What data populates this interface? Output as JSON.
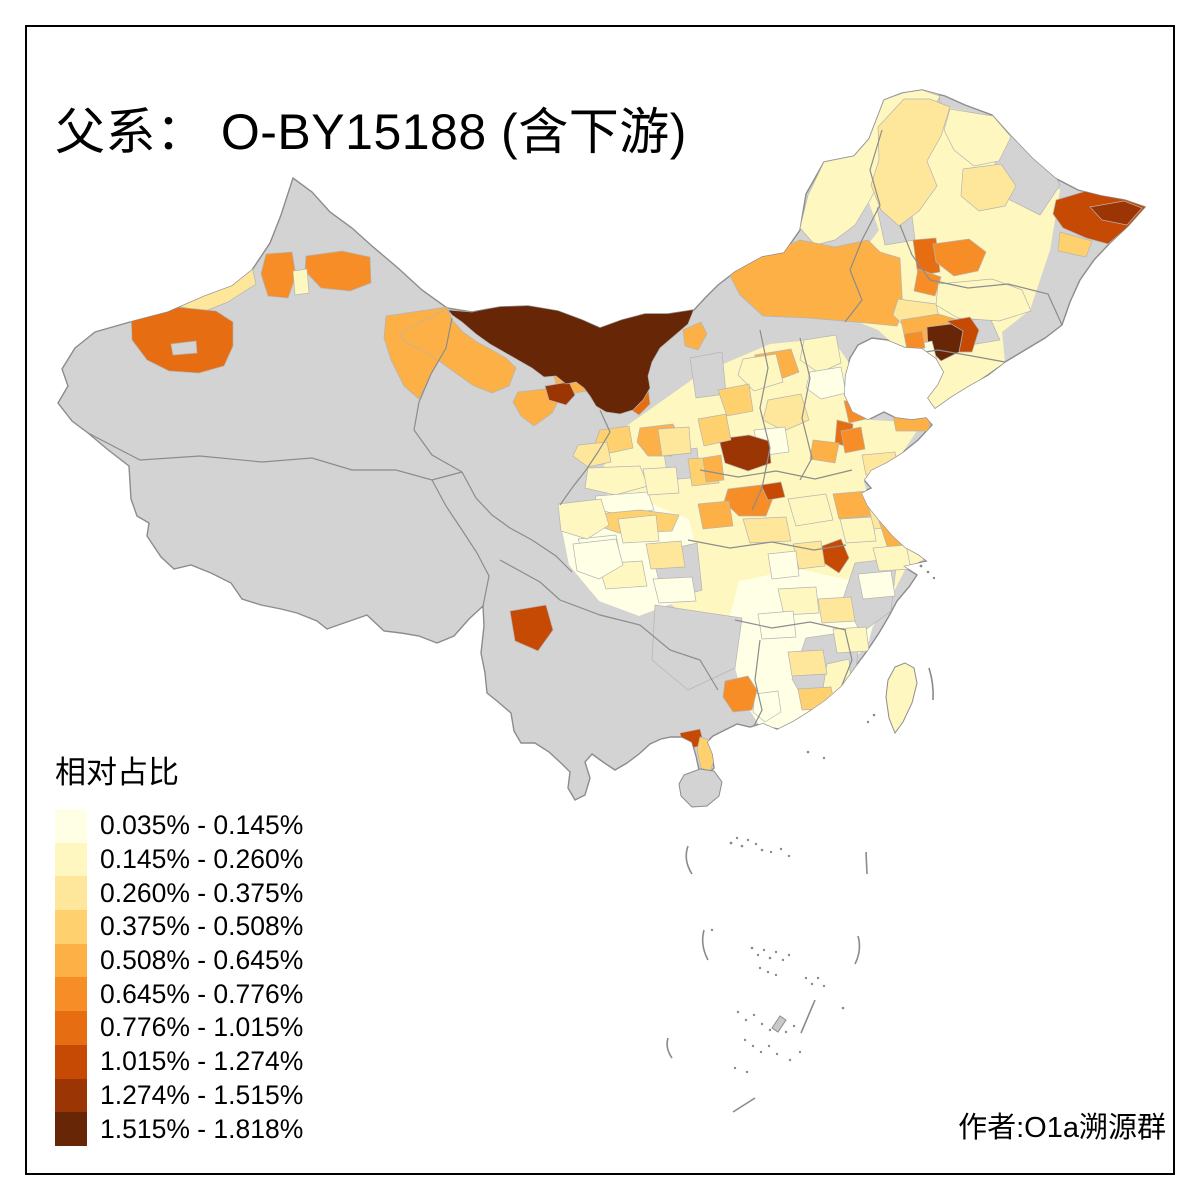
{
  "title": "父系： O-BY15188 (含下游)",
  "legend": {
    "title": "相对占比",
    "bins": [
      {
        "range": "0.035% - 0.145%",
        "color": "#FFFFE5"
      },
      {
        "range": "0.145% - 0.260%",
        "color": "#FFF7C0"
      },
      {
        "range": "0.260% - 0.375%",
        "color": "#FEE79A"
      },
      {
        "range": "0.375% - 0.508%",
        "color": "#FED16E"
      },
      {
        "range": "0.508% - 0.645%",
        "color": "#FDB046"
      },
      {
        "range": "0.645% - 0.776%",
        "color": "#F78D27"
      },
      {
        "range": "0.776% - 1.015%",
        "color": "#E66D11"
      },
      {
        "range": "1.015% - 1.274%",
        "color": "#C64A03"
      },
      {
        "range": "1.274% - 1.515%",
        "color": "#9B3503"
      },
      {
        "range": "1.515% - 1.818%",
        "color": "#672606"
      }
    ],
    "no_data_color": "#D3D3D3"
  },
  "attribution": "作者:O1a溯源群",
  "map": {
    "background": "#FFFFFF",
    "frame_color": "#000000",
    "province_line_color": "#8C8C8C",
    "prefecture_line_color": "#B4B4B4"
  }
}
